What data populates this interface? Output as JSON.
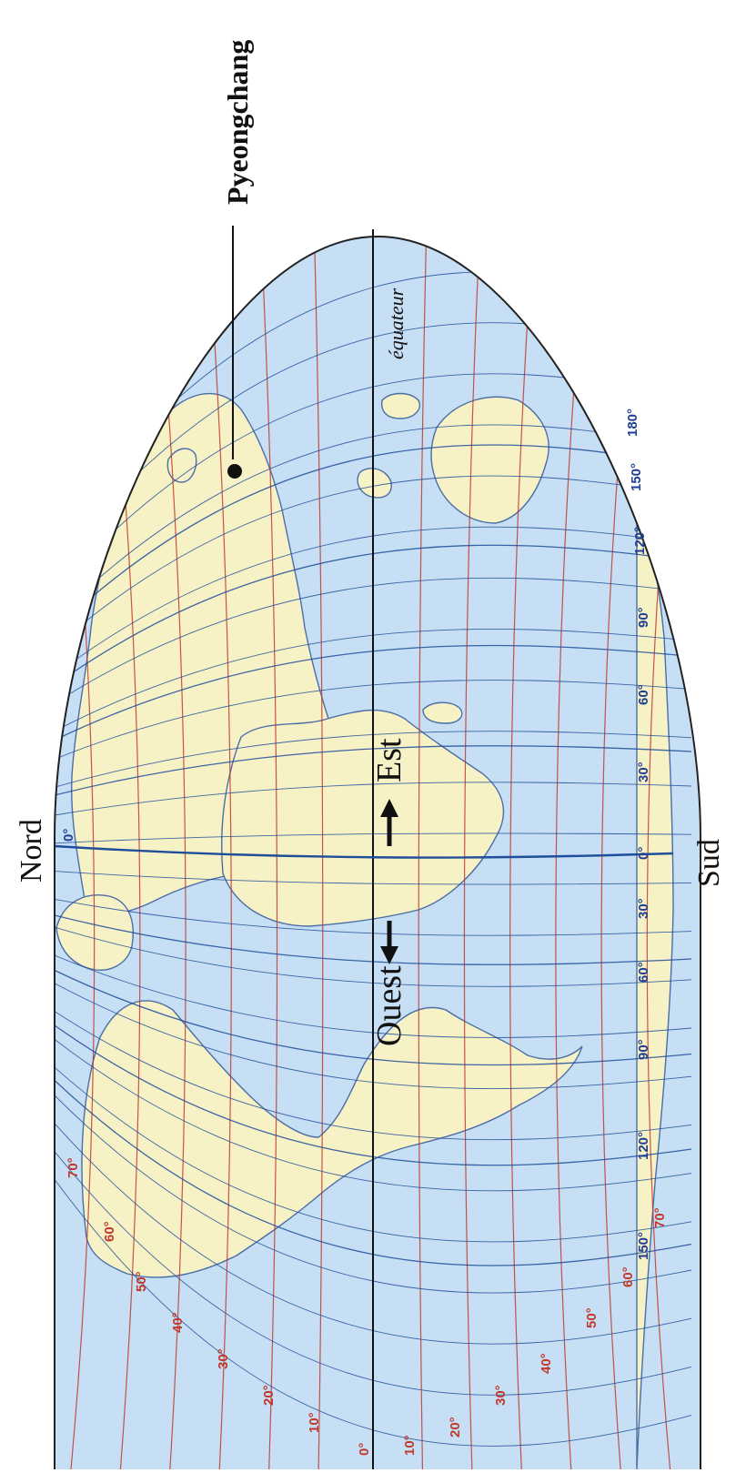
{
  "map": {
    "labels": {
      "north": "Nord",
      "south": "Sud",
      "west": "Ouest",
      "east": "Est",
      "equator": "équateur",
      "city": "Pyeongchang"
    },
    "latitude_labels_west": [
      "70°",
      "60°",
      "50°",
      "40°",
      "30°",
      "20°",
      "10°",
      "0°"
    ],
    "latitude_labels_east": [
      "10°",
      "20°",
      "30°",
      "40°",
      "50°",
      "60°",
      "70°"
    ],
    "longitude_labels": [
      "150°",
      "120°",
      "90°",
      "60°",
      "30°",
      "0°",
      "30°",
      "60°",
      "90°",
      "120°",
      "150°",
      "180°"
    ],
    "prime_meridian_label": "0°",
    "colors": {
      "ocean": "#c7dff4",
      "land": "#f7f1c6",
      "coast": "#4a6ea8",
      "parallel": "#c0392b",
      "meridian": "#1f4e9a",
      "outline": "#222222",
      "equator": "#111111"
    }
  }
}
